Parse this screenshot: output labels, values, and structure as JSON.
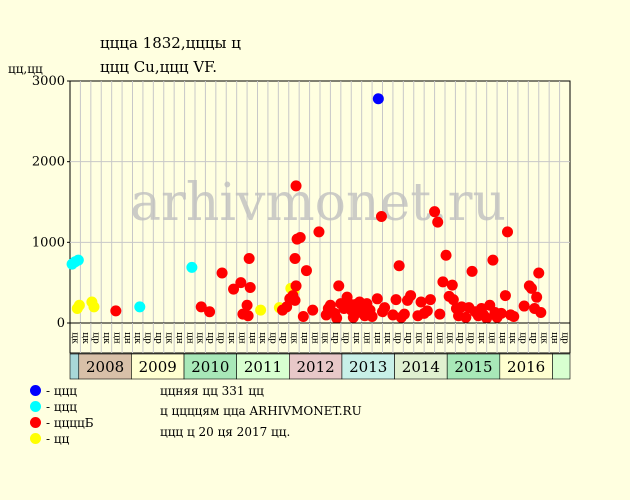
{
  "title_line1": "ццца 1832,цццы ц",
  "title_line2": "ццц Cu,ццц VF.",
  "y_unit": "цц,цц",
  "watermark": "arhivmonet.ru",
  "legend": [
    {
      "label": "- ццц",
      "color": "#0000ff"
    },
    {
      "label": "- ццц",
      "color": "#00ffff"
    },
    {
      "label": "- ццццБ",
      "color": "#ff0000"
    },
    {
      "label": "- цц",
      "color": "#ffff00"
    }
  ],
  "info": [
    "ццняя цц 331 цц",
    "ц ццццям цца ARHIVMONET.RU",
    "ццц ц 20 ця 2017 цц."
  ],
  "chart_data": {
    "type": "scatter",
    "ylim": [
      0,
      3000
    ],
    "yticks": [
      0,
      1000,
      2000,
      3000
    ],
    "columns": 48,
    "column_labels": [
      "цк",
      "цк",
      "цр",
      "цк",
      "цн",
      "цн",
      "цк",
      "цр",
      "цр",
      "цк",
      "цн",
      "цн",
      "цк",
      "цр",
      "цр",
      "цк",
      "цн",
      "цн",
      "цк",
      "цр",
      "цр",
      "цк",
      "цн",
      "цн",
      "цк",
      "цр",
      "цр",
      "цк",
      "цн",
      "цн",
      "цк",
      "цр",
      "цр",
      "цк",
      "цн",
      "цн",
      "цк",
      "цр",
      "цр",
      "цк",
      "цн",
      "цн",
      "цк",
      "цр",
      "цр",
      "цк",
      "цн",
      "цр"
    ],
    "years": [
      {
        "label": "",
        "start": 0,
        "end": 1,
        "color": "#a8d8d8"
      },
      {
        "label": "2008",
        "start": 1,
        "end": 7,
        "color": "#d8c0a8"
      },
      {
        "label": "2009",
        "start": 7,
        "end": 13,
        "color": "#ffffd0"
      },
      {
        "label": "2010",
        "start": 13,
        "end": 19,
        "color": "#a8e8b8"
      },
      {
        "label": "2011",
        "start": 19,
        "end": 25,
        "color": "#d8ffd0"
      },
      {
        "label": "2012",
        "start": 25,
        "end": 31,
        "color": "#e8c8c8"
      },
      {
        "label": "2013",
        "start": 31,
        "end": 37,
        "color": "#c8f0e8"
      },
      {
        "label": "2014",
        "start": 37,
        "end": 43,
        "color": "#e0f0d0"
      },
      {
        "label": "2015",
        "start": 43,
        "end": 49,
        "color": "#a8e8b8"
      },
      {
        "label": "2016",
        "start": 49,
        "end": 55,
        "color": "#ffffd0"
      },
      {
        "label": "",
        "start": 55,
        "end": 57,
        "color": "#d8ffd0"
      }
    ],
    "series": [
      {
        "color": "#0000ff",
        "points": [
          [
            29.6,
            2780
          ]
        ]
      },
      {
        "color": "#00ffff",
        "points": [
          [
            0.2,
            730
          ],
          [
            0.5,
            760
          ],
          [
            0.8,
            780
          ],
          [
            11.7,
            690
          ],
          [
            6.7,
            200
          ]
        ]
      },
      {
        "color": "#ffff00",
        "points": [
          [
            0.7,
            180
          ],
          [
            0.9,
            220
          ],
          [
            2.1,
            260
          ],
          [
            2.3,
            200
          ],
          [
            18.3,
            160
          ],
          [
            20.1,
            190
          ],
          [
            21.2,
            430
          ],
          [
            21.5,
            400
          ]
        ]
      },
      {
        "color": "#ff0000",
        "points": [
          [
            4.4,
            150
          ],
          [
            12.6,
            200
          ],
          [
            13.4,
            140
          ],
          [
            14.6,
            620
          ],
          [
            15.7,
            420
          ],
          [
            16.4,
            500
          ],
          [
            16.6,
            110
          ],
          [
            17.0,
            220
          ],
          [
            17.2,
            800
          ],
          [
            17.3,
            440
          ],
          [
            17.1,
            90
          ],
          [
            20.4,
            160
          ],
          [
            20.8,
            200
          ],
          [
            21.1,
            300
          ],
          [
            21.4,
            340
          ],
          [
            21.6,
            280
          ],
          [
            21.7,
            460
          ],
          [
            21.6,
            800
          ],
          [
            21.7,
            1700
          ],
          [
            21.8,
            1040
          ],
          [
            22.1,
            1060
          ],
          [
            22.4,
            80
          ],
          [
            22.7,
            650
          ],
          [
            23.3,
            160
          ],
          [
            23.9,
            1130
          ],
          [
            24.6,
            100
          ],
          [
            24.8,
            180
          ],
          [
            25.0,
            220
          ],
          [
            25.4,
            120
          ],
          [
            25.6,
            60
          ],
          [
            25.8,
            460
          ],
          [
            26.0,
            240
          ],
          [
            26.3,
            180
          ],
          [
            26.6,
            320
          ],
          [
            26.8,
            240
          ],
          [
            27.0,
            160
          ],
          [
            27.2,
            70
          ],
          [
            27.4,
            230
          ],
          [
            27.6,
            130
          ],
          [
            27.8,
            260
          ],
          [
            28.1,
            200
          ],
          [
            28.3,
            90
          ],
          [
            28.5,
            240
          ],
          [
            28.8,
            160
          ],
          [
            29.0,
            80
          ],
          [
            29.5,
            300
          ],
          [
            29.9,
            1320
          ],
          [
            30.0,
            140
          ],
          [
            30.2,
            190
          ],
          [
            31.0,
            100
          ],
          [
            31.3,
            290
          ],
          [
            31.6,
            710
          ],
          [
            31.8,
            70
          ],
          [
            32.1,
            110
          ],
          [
            32.4,
            280
          ],
          [
            32.7,
            340
          ],
          [
            33.4,
            90
          ],
          [
            33.7,
            260
          ],
          [
            34.0,
            120
          ],
          [
            34.3,
            150
          ],
          [
            34.6,
            290
          ],
          [
            35.0,
            1380
          ],
          [
            35.3,
            1250
          ],
          [
            35.5,
            110
          ],
          [
            35.8,
            510
          ],
          [
            36.1,
            840
          ],
          [
            36.4,
            330
          ],
          [
            36.7,
            470
          ],
          [
            36.8,
            290
          ],
          [
            37.1,
            180
          ],
          [
            37.3,
            90
          ],
          [
            37.6,
            200
          ],
          [
            38.0,
            70
          ],
          [
            38.3,
            190
          ],
          [
            38.6,
            640
          ],
          [
            38.9,
            140
          ],
          [
            39.2,
            90
          ],
          [
            39.5,
            180
          ],
          [
            39.7,
            100
          ],
          [
            40.0,
            60
          ],
          [
            40.3,
            220
          ],
          [
            40.6,
            780
          ],
          [
            40.8,
            130
          ],
          [
            41.0,
            70
          ],
          [
            41.4,
            120
          ],
          [
            41.8,
            340
          ],
          [
            42.0,
            1130
          ],
          [
            42.3,
            100
          ],
          [
            42.6,
            80
          ],
          [
            43.6,
            210
          ],
          [
            44.1,
            460
          ],
          [
            44.3,
            430
          ],
          [
            44.6,
            180
          ],
          [
            44.8,
            320
          ],
          [
            45.0,
            620
          ],
          [
            45.2,
            130
          ]
        ]
      }
    ]
  }
}
